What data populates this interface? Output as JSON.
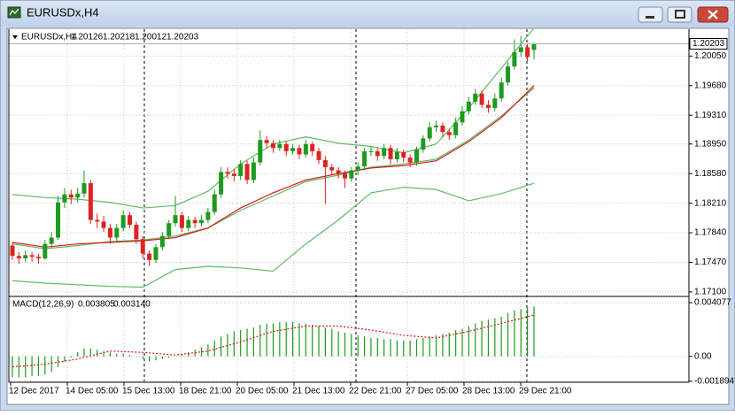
{
  "chart_data": {
    "type": "candlestick",
    "title": "EURUSDx,H4",
    "up_color": "#1e9a1e",
    "down_color": "#e02222",
    "grid": true,
    "ylim": [
      1.17066,
      1.20386
    ],
    "yticks": [
      {
        "value": 1.2005,
        "label": "1.20050"
      },
      {
        "value": 1.1968,
        "label": "1.19680"
      },
      {
        "value": 1.1931,
        "label": "1.19310"
      },
      {
        "value": 1.1895,
        "label": "1.18950"
      },
      {
        "value": 1.1858,
        "label": "1.18580"
      },
      {
        "value": 1.1821,
        "label": "1.18210"
      },
      {
        "value": 1.1784,
        "label": "1.17840"
      },
      {
        "value": 1.1747,
        "label": "1.17470"
      },
      {
        "value": 1.171,
        "label": "1.17100"
      }
    ],
    "x_labels": [
      "12 Dec 2017",
      "14 Dec 05:00",
      "15 Dec 13:00",
      "18 Dec 21:00",
      "20 Dec 05:00",
      "21 Dec 13:00",
      "22 Dec 21:00",
      "27 Dec 05:00",
      "28 Dec 13:00",
      "29 Dec 21:00"
    ],
    "candles": [
      [
        1.1768,
        1.1772,
        1.175,
        1.1755
      ],
      [
        1.1755,
        1.176,
        1.1745,
        1.1752
      ],
      [
        1.1752,
        1.1762,
        1.1748,
        1.1756
      ],
      [
        1.1756,
        1.176,
        1.1748,
        1.1754
      ],
      [
        1.1754,
        1.1758,
        1.1745,
        1.1752
      ],
      [
        1.1752,
        1.1775,
        1.175,
        1.177
      ],
      [
        1.177,
        1.1785,
        1.1765,
        1.1778
      ],
      [
        1.1778,
        1.183,
        1.1775,
        1.1822
      ],
      [
        1.1822,
        1.184,
        1.1815,
        1.1832
      ],
      [
        1.1832,
        1.1838,
        1.182,
        1.1828
      ],
      [
        1.1828,
        1.184,
        1.1822,
        1.1833
      ],
      [
        1.1833,
        1.1862,
        1.1828,
        1.1846
      ],
      [
        1.1846,
        1.185,
        1.1795,
        1.18
      ],
      [
        1.18,
        1.1808,
        1.179,
        1.1798
      ],
      [
        1.1798,
        1.1805,
        1.1785,
        1.179
      ],
      [
        1.179,
        1.1795,
        1.177,
        1.1778
      ],
      [
        1.1778,
        1.1795,
        1.1774,
        1.179
      ],
      [
        1.179,
        1.1812,
        1.1786,
        1.1806
      ],
      [
        1.1806,
        1.181,
        1.179,
        1.1794
      ],
      [
        1.1794,
        1.1798,
        1.177,
        1.1776
      ],
      [
        1.1776,
        1.178,
        1.1752,
        1.1758
      ],
      [
        1.1758,
        1.1762,
        1.1742,
        1.175
      ],
      [
        1.175,
        1.177,
        1.1746,
        1.1766
      ],
      [
        1.1766,
        1.1785,
        1.1762,
        1.178
      ],
      [
        1.178,
        1.18,
        1.1776,
        1.1796
      ],
      [
        1.1796,
        1.183,
        1.1792,
        1.1806
      ],
      [
        1.1806,
        1.181,
        1.1785,
        1.179
      ],
      [
        1.179,
        1.1805,
        1.1786,
        1.18
      ],
      [
        1.18,
        1.1804,
        1.179,
        1.1796
      ],
      [
        1.1796,
        1.1806,
        1.1792,
        1.18
      ],
      [
        1.18,
        1.1815,
        1.1796,
        1.181
      ],
      [
        1.181,
        1.1838,
        1.1806,
        1.1832
      ],
      [
        1.1832,
        1.1866,
        1.1828,
        1.186
      ],
      [
        1.186,
        1.1866,
        1.1852,
        1.1858
      ],
      [
        1.1858,
        1.1864,
        1.1848,
        1.1855
      ],
      [
        1.1855,
        1.1875,
        1.185,
        1.187
      ],
      [
        1.187,
        1.1874,
        1.1845,
        1.185
      ],
      [
        1.185,
        1.1878,
        1.1846,
        1.1872
      ],
      [
        1.1872,
        1.1912,
        1.1868,
        1.19
      ],
      [
        1.19,
        1.1905,
        1.189,
        1.1896
      ],
      [
        1.1896,
        1.19,
        1.1884,
        1.189
      ],
      [
        1.189,
        1.19,
        1.1886,
        1.1895
      ],
      [
        1.1895,
        1.1898,
        1.188,
        1.1886
      ],
      [
        1.1886,
        1.1895,
        1.1882,
        1.189
      ],
      [
        1.189,
        1.1894,
        1.1876,
        1.1882
      ],
      [
        1.1882,
        1.19,
        1.1878,
        1.1895
      ],
      [
        1.1895,
        1.1898,
        1.188,
        1.1886
      ],
      [
        1.1886,
        1.189,
        1.187,
        1.1875
      ],
      [
        1.1875,
        1.188,
        1.182,
        1.1866
      ],
      [
        1.1866,
        1.187,
        1.1856,
        1.1862
      ],
      [
        1.1862,
        1.1866,
        1.1852,
        1.1858
      ],
      [
        1.1858,
        1.1862,
        1.184,
        1.1852
      ],
      [
        1.1852,
        1.1866,
        1.1848,
        1.1862
      ],
      [
        1.1862,
        1.1872,
        1.1856,
        1.1867
      ],
      [
        1.1867,
        1.189,
        1.1862,
        1.1886
      ],
      [
        1.1886,
        1.1892,
        1.188,
        1.1886
      ],
      [
        1.1886,
        1.189,
        1.1874,
        1.188
      ],
      [
        1.188,
        1.1895,
        1.1876,
        1.189
      ],
      [
        1.189,
        1.1894,
        1.187,
        1.1876
      ],
      [
        1.1876,
        1.189,
        1.1872,
        1.1885
      ],
      [
        1.1885,
        1.1888,
        1.1872,
        1.1878
      ],
      [
        1.1878,
        1.1882,
        1.1866,
        1.1872
      ],
      [
        1.1872,
        1.1892,
        1.1868,
        1.1888
      ],
      [
        1.1888,
        1.1906,
        1.1884,
        1.1902
      ],
      [
        1.1902,
        1.1922,
        1.1898,
        1.1916
      ],
      [
        1.1916,
        1.1924,
        1.191,
        1.1918
      ],
      [
        1.1918,
        1.1922,
        1.1904,
        1.191
      ],
      [
        1.191,
        1.1914,
        1.19,
        1.1906
      ],
      [
        1.1906,
        1.1928,
        1.1902,
        1.1922
      ],
      [
        1.1922,
        1.1942,
        1.1918,
        1.1936
      ],
      [
        1.1936,
        1.1954,
        1.1932,
        1.1948
      ],
      [
        1.1948,
        1.1964,
        1.1944,
        1.1958
      ],
      [
        1.1958,
        1.1962,
        1.194,
        1.1944
      ],
      [
        1.1944,
        1.195,
        1.1934,
        1.194
      ],
      [
        1.194,
        1.1958,
        1.1936,
        1.1952
      ],
      [
        1.1952,
        1.1978,
        1.1948,
        1.1972
      ],
      [
        1.1972,
        1.1998,
        1.1968,
        1.1992
      ],
      [
        1.1992,
        1.2026,
        1.1988,
        1.201
      ],
      [
        1.201,
        1.203,
        1.2004,
        1.2016
      ],
      [
        1.2016,
        1.202,
        1.1998,
        1.2004
      ],
      [
        1.20126,
        1.20218,
        1.20012,
        1.20203
      ]
    ],
    "overlay_x": [
      0,
      5,
      10,
      15,
      20,
      25,
      30,
      35,
      40,
      45,
      50,
      55,
      60,
      65,
      70,
      75,
      80
    ],
    "overlays": [
      {
        "color": "#5dbb63",
        "values": [
          1.1832,
          1.1828,
          1.1826,
          1.1822,
          1.1815,
          1.1818,
          1.1836,
          1.187,
          1.1895,
          1.1904,
          1.1896,
          1.1892,
          1.1884,
          1.1895,
          1.194,
          1.199,
          1.204
        ]
      },
      {
        "color": "#5dbb63",
        "values": [
          1.177,
          1.1764,
          1.1768,
          1.1773,
          1.1775,
          1.178,
          1.179,
          1.1812,
          1.183,
          1.1848,
          1.1856,
          1.1866,
          1.187,
          1.1876,
          1.19,
          1.193,
          1.1965
        ]
      },
      {
        "color": "#5dbb63",
        "values": [
          1.1724,
          1.1721,
          1.1719,
          1.1717,
          1.1716,
          1.1738,
          1.1742,
          1.174,
          1.1736,
          1.177,
          1.18,
          1.1834,
          1.1841,
          1.1838,
          1.1824,
          1.1833,
          1.1846
        ]
      },
      {
        "color": "#d81818",
        "values": [
          1.1772,
          1.1766,
          1.177,
          1.1772,
          1.1774,
          1.1778,
          1.179,
          1.1815,
          1.1834,
          1.185,
          1.1858,
          1.1865,
          1.1868,
          1.1874,
          1.1898,
          1.1928,
          1.1968
        ]
      }
    ],
    "macd": {
      "title": "MACD(12,26,9)",
      "ylim": [
        -0.00197,
        0.00442
      ],
      "yticks": [
        0.004077,
        {
          "value": 0,
          "label": "0.00"
        },
        -0.001894
      ],
      "histogram": {
        "color": "#1e9a1e",
        "values": [
          -0.0016,
          -0.0016,
          -0.0016,
          -0.0015,
          -0.0015,
          -0.0014,
          -0.0012,
          -0.0008,
          -0.0004,
          -0.0001,
          0.0003,
          0.0006,
          0.0006,
          0.0005,
          0.0004,
          0.0003,
          0.0002,
          0.0002,
          0.0001,
          0.0,
          -0.0002,
          -0.0004,
          -0.0003,
          -0.0002,
          -0.0001,
          0.0,
          0.0001,
          0.0003,
          0.0005,
          0.0007,
          0.0009,
          0.0012,
          0.0015,
          0.0017,
          0.0019,
          0.002,
          0.0021,
          0.0022,
          0.0024,
          0.0025,
          0.0025,
          0.0026,
          0.0026,
          0.0026,
          0.0025,
          0.0025,
          0.0024,
          0.0023,
          0.0022,
          0.0021,
          0.0019,
          0.0018,
          0.0017,
          0.0016,
          0.0015,
          0.0014,
          0.0014,
          0.0013,
          0.0013,
          0.0012,
          0.0012,
          0.0012,
          0.0013,
          0.0014,
          0.0015,
          0.0016,
          0.0017,
          0.0018,
          0.002,
          0.0021,
          0.0023,
          0.0025,
          0.0027,
          0.0028,
          0.0029,
          0.003,
          0.0033,
          0.0035,
          0.0036,
          0.0037,
          0.003805
        ]
      },
      "signal": {
        "color": "#d81818",
        "values": [
          -0.0008,
          -0.0006,
          -0.0002,
          0.0004,
          0.0003,
          0.0001,
          0.0004,
          0.0011,
          0.0019,
          0.0023,
          0.0023,
          0.002,
          0.0016,
          0.0014,
          0.0019,
          0.0025,
          0.00314
        ],
        "value_labels": [
          null,
          null,
          null,
          null,
          null,
          null,
          null,
          null,
          null,
          null,
          null,
          null,
          null,
          null,
          null,
          null,
          "0.003140"
        ]
      }
    }
  }
}
